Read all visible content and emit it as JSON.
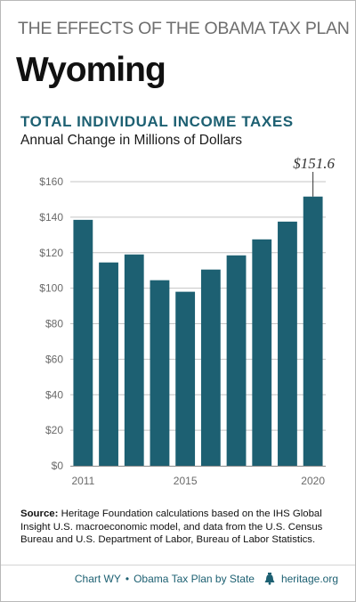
{
  "header": {
    "series_title": "THE EFFECTS OF THE OBAMA TAX PLAN",
    "state": "Wyoming"
  },
  "chart_data": {
    "type": "bar",
    "title": "TOTAL INDIVIDUAL INCOME TAXES",
    "subtitle": "Annual Change in Millions of Dollars",
    "categories": [
      "2011",
      "2012",
      "2013",
      "2014",
      "2015",
      "2016",
      "2017",
      "2018",
      "2019",
      "2020"
    ],
    "x_tick_labels": [
      "2011",
      "",
      "",
      "",
      "2015",
      "",
      "",
      "",
      "",
      "2020"
    ],
    "values": [
      138.5,
      114.5,
      119,
      104.5,
      98,
      110.5,
      118.5,
      127.5,
      137.5,
      151.6
    ],
    "y_ticks": [
      0,
      20,
      40,
      60,
      80,
      100,
      120,
      140,
      160
    ],
    "y_tick_labels": [
      "$0",
      "$20",
      "$40",
      "$60",
      "$80",
      "$100",
      "$120",
      "$140",
      "$160"
    ],
    "ylim": [
      0,
      160
    ],
    "grid": true,
    "annotation": {
      "category": "2020",
      "value": 151.6,
      "label": "$151.6"
    },
    "bar_color": "#1d6072"
  },
  "source": {
    "label": "Source:",
    "text": "Heritage Foundation calculations based on the IHS Global Insight U.S. macroeconomic model, and data from the U.S. Census Bureau and U.S. Department of Labor, Bureau of Labor Statistics."
  },
  "footer": {
    "chart_id": "Chart WY",
    "separator": "•",
    "series_name": "Obama Tax Plan by State",
    "icon": "liberty-bell-icon",
    "site": "heritage.org"
  }
}
